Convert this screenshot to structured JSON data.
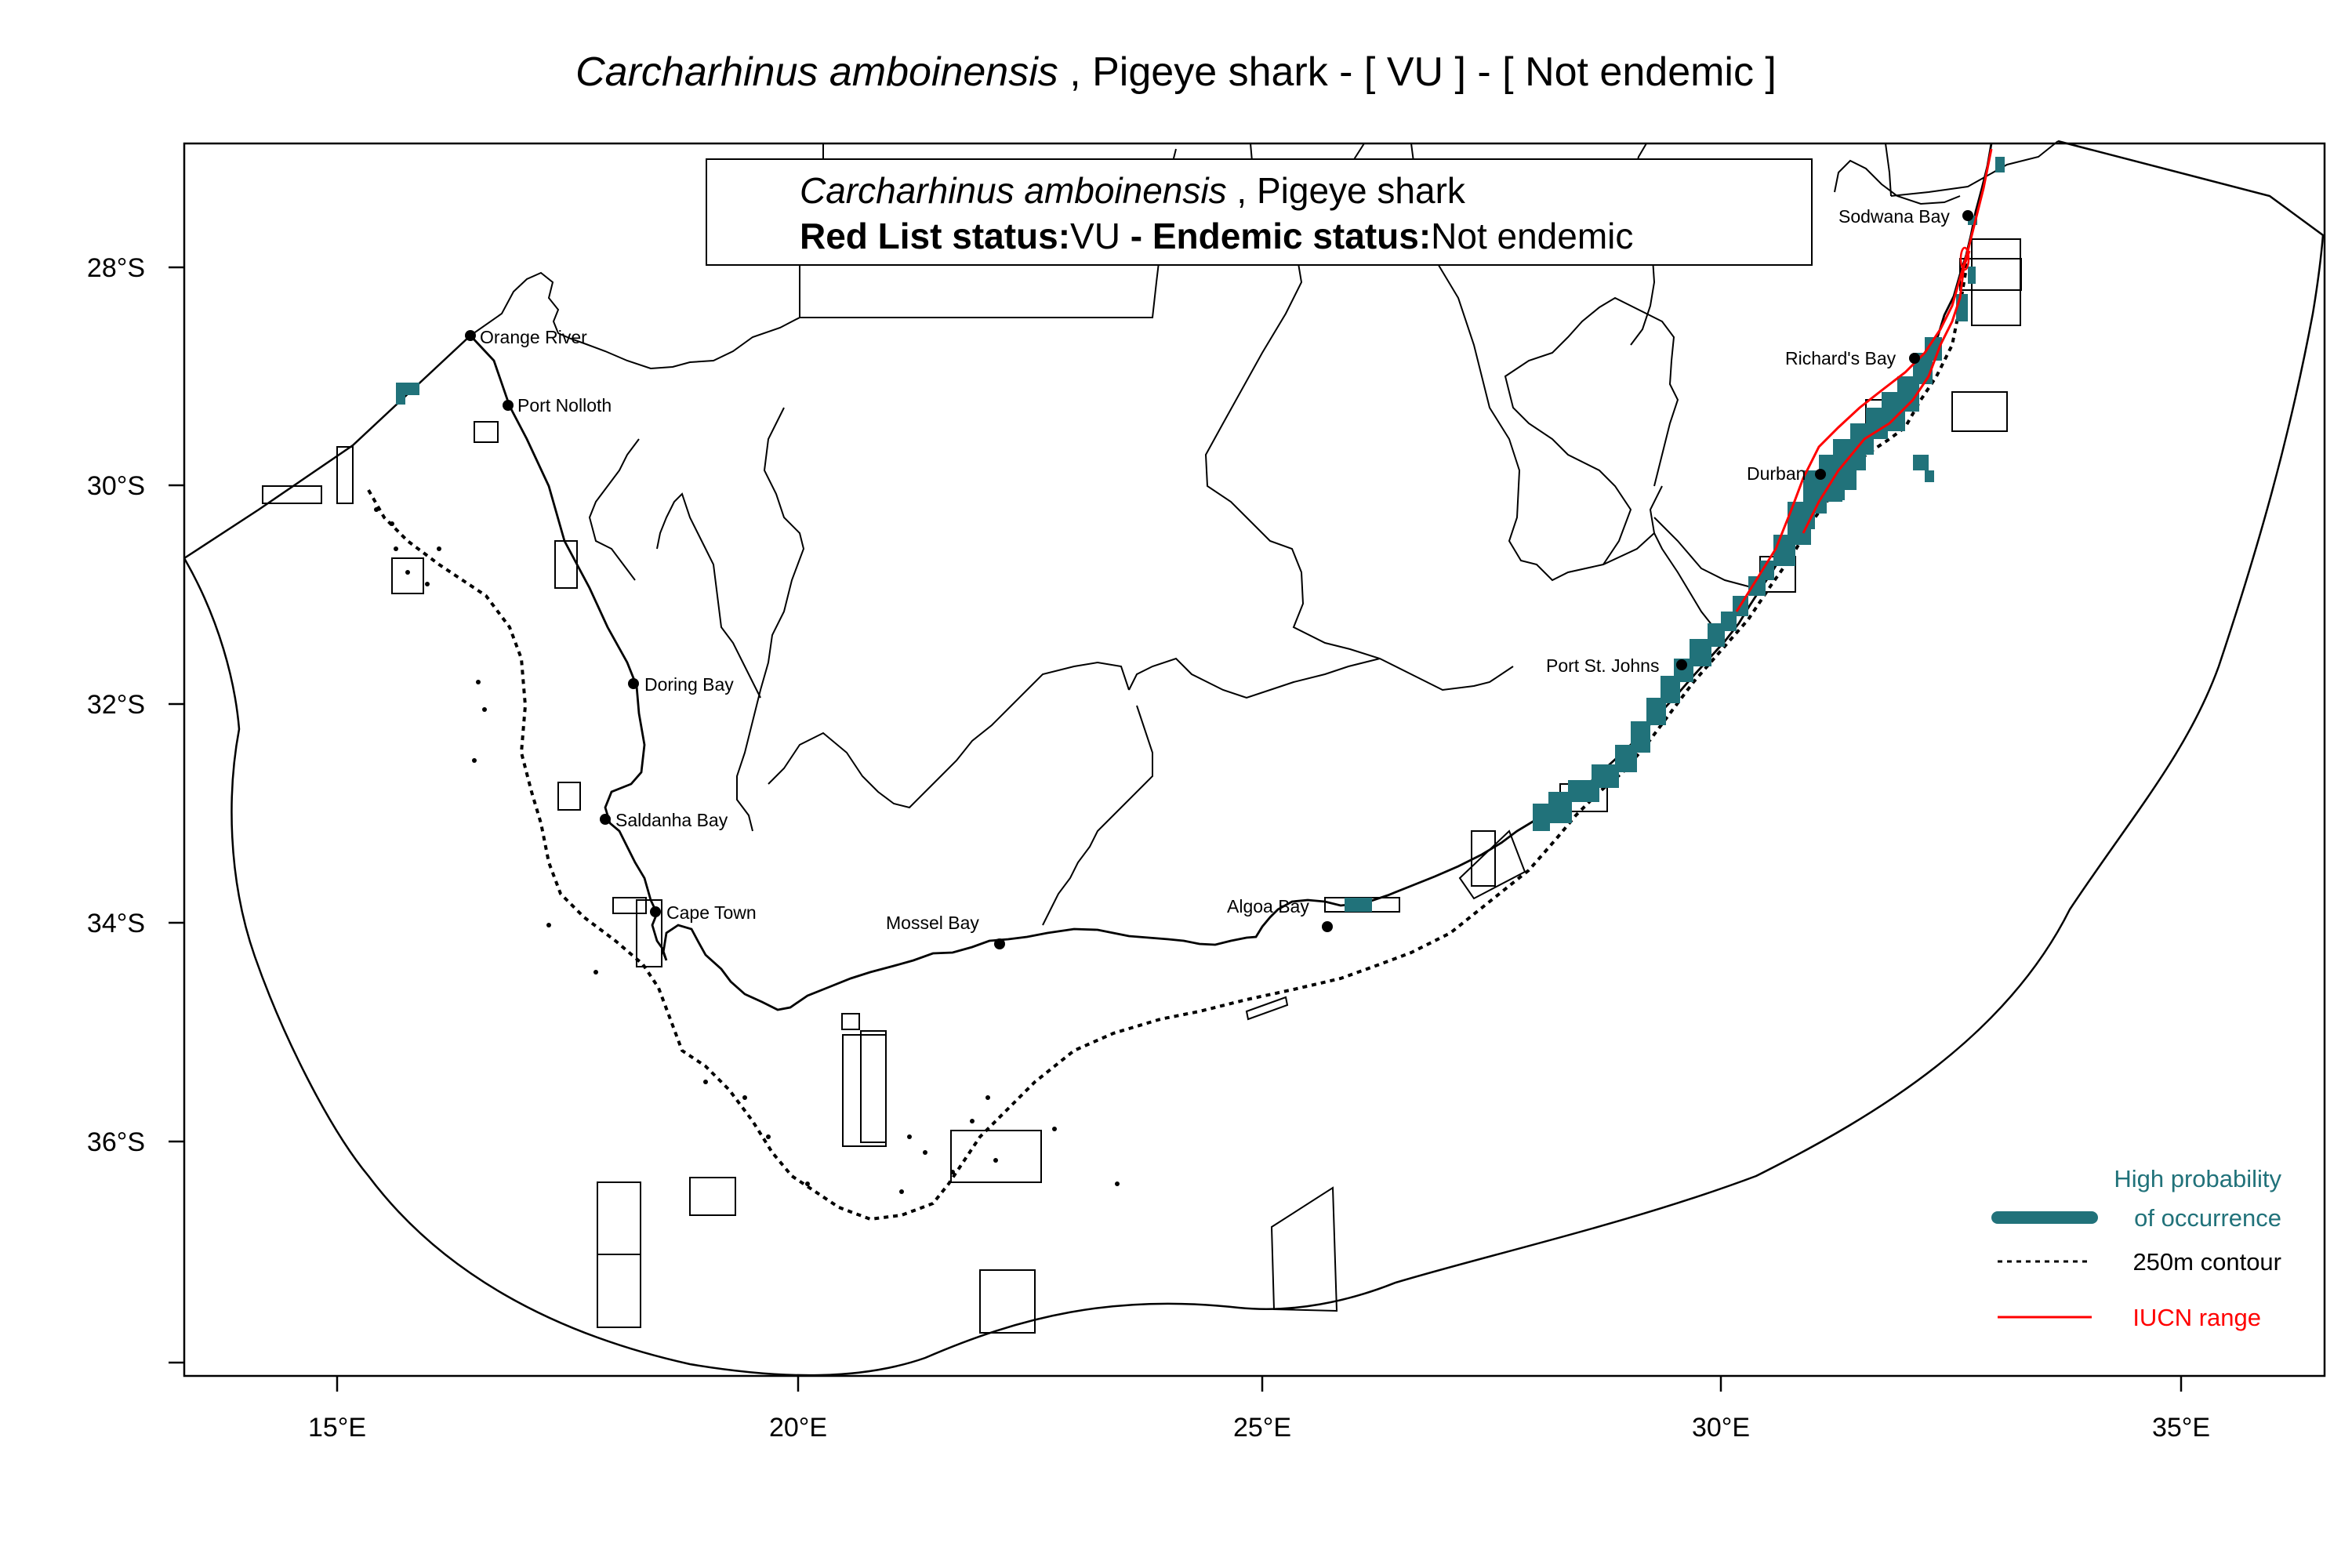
{
  "title": {
    "scientific_name": "Carcharhinus amboinensis",
    "common_name_part": " , Pigeye shark  - [ VU ] - [ Not endemic ]"
  },
  "infobox": {
    "scientific_name": "Carcharhinus amboinensis",
    "common_name_part": " , Pigeye shark",
    "red_list_label": "Red List status:",
    "red_list_value": "VU",
    "endemic_label": " - Endemic status:",
    "endemic_value": "Not endemic"
  },
  "axes": {
    "x_ticks": [
      "15°E",
      "20°E",
      "25°E",
      "30°E",
      "35°E"
    ],
    "y_ticks": [
      "28°S",
      "30°S",
      "32°S",
      "34°S",
      "36°S"
    ]
  },
  "places": [
    {
      "name": "Orange River",
      "lon": 16.45,
      "lat": -28.62
    },
    {
      "name": "Port Nolloth",
      "lon": 16.87,
      "lat": -29.25
    },
    {
      "name": "Doring Bay",
      "lon": 18.23,
      "lat": -31.82
    },
    {
      "name": "Saldanha Bay",
      "lon": 17.95,
      "lat": -33.05
    },
    {
      "name": "Cape Town",
      "lon": 18.42,
      "lat": -33.92
    },
    {
      "name": "Mossel Bay",
      "lon": 22.14,
      "lat": -34.18
    },
    {
      "name": "Algoa Bay",
      "lon": 25.7,
      "lat": -34.0
    },
    {
      "name": "Port St. Johns",
      "lon": 29.54,
      "lat": -31.63
    },
    {
      "name": "Durban",
      "lon": 31.0,
      "lat": -29.87
    },
    {
      "name": "Richard's Bay",
      "lon": 32.05,
      "lat": -28.8
    },
    {
      "name": "Sodwana Bay",
      "lon": 32.68,
      "lat": -27.55
    }
  ],
  "legend": {
    "high_prob_line1": "High probability",
    "high_prob_line2": "of occurrence",
    "contour": "250m contour",
    "iucn": "IUCN range"
  },
  "colors": {
    "occurrence": "#21727a",
    "iucn_range": "#ff0000",
    "outline": "#000000"
  }
}
